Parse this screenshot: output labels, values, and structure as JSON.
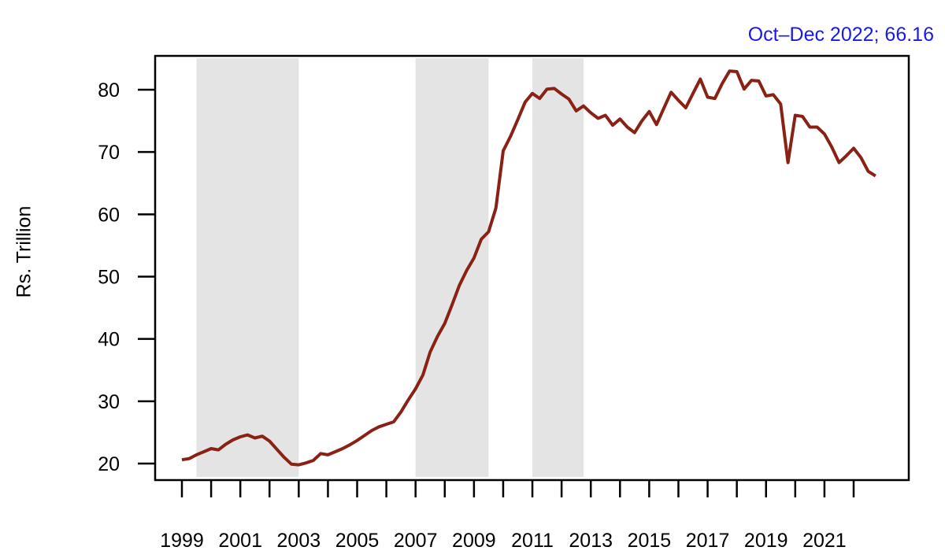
{
  "colors": {
    "line": "#8a2115",
    "band": "#e4e4e4",
    "annotation_blue": "#1a1ae6",
    "axis": "#000000",
    "background": "#ffffff"
  },
  "chart_data": {
    "type": "line",
    "title": "",
    "annotation": "Oct–Dec 2022; 66.16",
    "ylabel": "Rs. Trillion",
    "xlabel": "",
    "grid": false,
    "legend": "none",
    "x_axis": {
      "minor_tick_years_from": 1999,
      "minor_tick_years_to": 2022,
      "label_years": [
        1999,
        2001,
        2003,
        2005,
        2007,
        2009,
        2011,
        2013,
        2015,
        2017,
        2019,
        2021
      ]
    },
    "y_axis": {
      "ticks": [
        20,
        30,
        40,
        50,
        60,
        70,
        80
      ],
      "range": [
        18.5,
        85.5
      ]
    },
    "shaded_periods": [
      {
        "from": 1999.5,
        "to": 2003.0
      },
      {
        "from": 2007.0,
        "to": 2009.5
      },
      {
        "from": 2011.0,
        "to": 2012.75
      }
    ],
    "last_point": {
      "label": "Oct–Dec 2022",
      "value": 66.16
    },
    "series": [
      {
        "name": "Rs. Trillion",
        "frequency": "quarterly",
        "start_period": "Jan–Mar 1999",
        "end_period": "Oct–Dec 2022",
        "values": [
          20.6,
          20.8,
          21.4,
          21.9,
          22.4,
          22.2,
          23.1,
          23.8,
          24.3,
          24.6,
          24.1,
          24.4,
          23.6,
          22.3,
          21.0,
          19.9,
          19.8,
          20.1,
          20.5,
          21.6,
          21.4,
          21.9,
          22.4,
          23.0,
          23.7,
          24.5,
          25.3,
          25.9,
          26.3,
          26.7,
          28.3,
          30.2,
          32.0,
          34.2,
          37.9,
          40.4,
          42.5,
          45.5,
          48.6,
          51.0,
          53.0,
          56.0,
          57.2,
          61.0,
          70.2,
          72.5,
          75.2,
          78.0,
          79.4,
          78.6,
          80.1,
          80.2,
          79.3,
          78.5,
          76.6,
          77.4,
          76.3,
          75.4,
          75.9,
          74.3,
          75.3,
          74.0,
          73.1,
          75.0,
          76.5,
          74.4,
          77.0,
          79.6,
          78.3,
          77.1,
          79.4,
          81.7,
          78.8,
          78.6,
          81.0,
          83.0,
          82.9,
          80.1,
          81.5,
          81.4,
          79.0,
          79.2,
          77.7,
          68.3,
          75.9,
          75.7,
          74.0,
          74.0,
          72.9,
          70.8,
          68.3,
          69.4,
          70.6,
          69.1,
          66.9,
          66.16
        ]
      }
    ]
  }
}
